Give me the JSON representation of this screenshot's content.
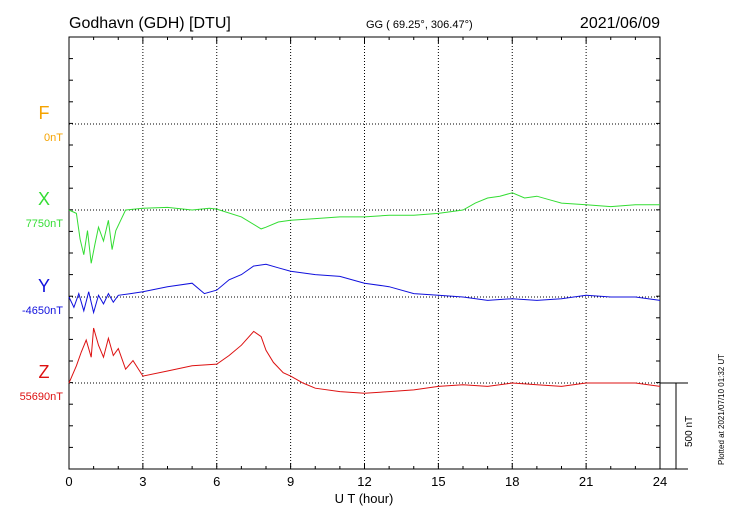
{
  "header": {
    "station": "Godhavn (GDH)  [DTU]",
    "coords": "GG ( 69.25°, 306.47°)",
    "date": "2021/06/09"
  },
  "footer": {
    "plotted": "Plotted at 2021/07/10 01:32 UT"
  },
  "colors": {
    "F": "#f5a300",
    "X": "#33dd33",
    "Y": "#1010dd",
    "Z": "#dd1111"
  },
  "chart_data": {
    "type": "line",
    "xlabel": "U T (hour)",
    "xlim": [
      0,
      24
    ],
    "xticks": [
      0,
      3,
      6,
      9,
      12,
      15,
      18,
      21,
      24
    ],
    "grid": true,
    "scale_bar": {
      "label": "500 nT",
      "value_nT": 500
    },
    "series": [
      {
        "name": "F",
        "baseline": "0nT",
        "base_value": 0,
        "x": [],
        "values": []
      },
      {
        "name": "X",
        "baseline": "7750nT",
        "base_value": 7750,
        "x": [
          0,
          0.3,
          0.45,
          0.6,
          0.75,
          0.9,
          1.05,
          1.2,
          1.4,
          1.6,
          1.75,
          1.9,
          2.1,
          2.3,
          3,
          4,
          5,
          5.7,
          6,
          7,
          7.8,
          8,
          8.5,
          9,
          10,
          11,
          12,
          13,
          14,
          15,
          16,
          16.5,
          17,
          17.5,
          18,
          18.5,
          19,
          19.5,
          20,
          21,
          22,
          23,
          24
        ],
        "values": [
          0,
          -20,
          -170,
          -260,
          -120,
          -310,
          -200,
          -100,
          -180,
          -60,
          -230,
          -120,
          -60,
          0,
          10,
          15,
          0,
          10,
          5,
          -40,
          -110,
          -100,
          -70,
          -60,
          -50,
          -40,
          -40,
          -30,
          -30,
          -20,
          0,
          40,
          70,
          80,
          100,
          70,
          80,
          60,
          40,
          30,
          20,
          30,
          30
        ]
      },
      {
        "name": "Y",
        "baseline": "-4650nT",
        "base_value": -4650,
        "x": [
          0,
          0.2,
          0.4,
          0.6,
          0.8,
          1.0,
          1.2,
          1.4,
          1.6,
          1.8,
          2.0,
          2.5,
          3,
          4,
          5,
          5.5,
          6,
          6.5,
          7,
          7.5,
          8,
          8.5,
          9,
          10,
          11,
          12,
          13,
          14,
          15,
          16,
          17,
          18,
          19,
          20,
          21,
          22,
          23,
          24
        ],
        "values": [
          0,
          -60,
          20,
          -80,
          30,
          -90,
          10,
          -40,
          20,
          -30,
          10,
          20,
          30,
          60,
          80,
          20,
          40,
          100,
          130,
          180,
          190,
          170,
          150,
          130,
          120,
          80,
          60,
          20,
          10,
          0,
          -20,
          -10,
          -20,
          -10,
          10,
          0,
          0,
          -20
        ]
      },
      {
        "name": "Z",
        "baseline": "55690nT",
        "base_value": 55690,
        "x": [
          0,
          0.3,
          0.5,
          0.7,
          0.9,
          1.0,
          1.2,
          1.4,
          1.6,
          1.8,
          2.0,
          2.3,
          2.6,
          3,
          4,
          5,
          6,
          6.5,
          7,
          7.5,
          7.8,
          8,
          8.3,
          8.7,
          9,
          9.5,
          10,
          11,
          12,
          13,
          14,
          15,
          16,
          17,
          18,
          19,
          20,
          21,
          22,
          23,
          24
        ],
        "values": [
          0,
          100,
          180,
          250,
          150,
          320,
          220,
          150,
          260,
          160,
          200,
          80,
          130,
          40,
          70,
          100,
          110,
          160,
          220,
          300,
          270,
          190,
          120,
          60,
          40,
          0,
          -30,
          -50,
          -60,
          -50,
          -40,
          -20,
          -10,
          -20,
          0,
          -10,
          -20,
          0,
          0,
          0,
          -20
        ]
      }
    ]
  }
}
